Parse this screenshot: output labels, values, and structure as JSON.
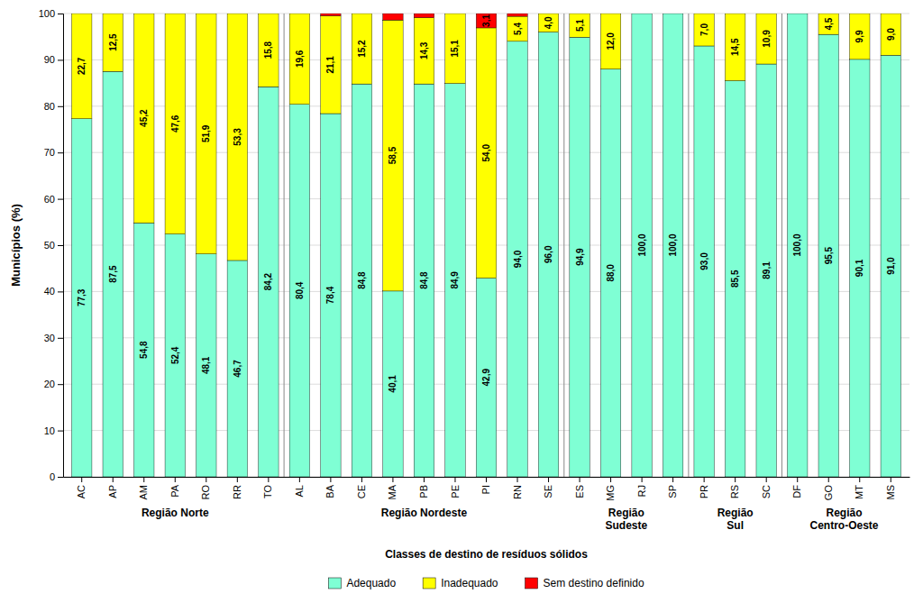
{
  "chart_data": {
    "type": "bar",
    "stacked": true,
    "data_labels": true,
    "grid": true,
    "ylabel": "Municípios (%)",
    "xlabel": "Classes de destino de resíduos sólidos",
    "categories": [
      "AC",
      "AP",
      "AM",
      "PA",
      "RO",
      "RR",
      "TO",
      "AL",
      "BA",
      "CE",
      "MA",
      "PB",
      "PE",
      "PI",
      "RN",
      "SE",
      "ES",
      "MG",
      "RJ",
      "SP",
      "PR",
      "RS",
      "SC",
      "DF",
      "GO",
      "MT",
      "MS"
    ],
    "series": [
      {
        "name": "Adequado",
        "color": "#7FFFD4",
        "values": [
          77.3,
          87.5,
          54.8,
          52.4,
          48.1,
          46.7,
          84.2,
          80.4,
          78.4,
          84.8,
          40.1,
          84.8,
          84.9,
          42.9,
          94.0,
          96.0,
          94.9,
          88.0,
          100.0,
          100.0,
          93.0,
          85.5,
          89.1,
          100.0,
          95.5,
          90.1,
          91.0
        ],
        "value_labels": [
          "77,3",
          "87,5",
          "54,8",
          "52,4",
          "48,1",
          "46,7",
          "84,2",
          "80,4",
          "78,4",
          "84,8",
          "40,1",
          "84,8",
          "84,9",
          "42,9",
          "94,0",
          "96,0",
          "94,9",
          "88,0",
          "100,0",
          "100,0",
          "93,0",
          "85,5",
          "89,1",
          "100,0",
          "95,5",
          "90,1",
          "91,0"
        ]
      },
      {
        "name": "Inadequado",
        "color": "#FFFF00",
        "values": [
          22.7,
          12.5,
          45.2,
          47.6,
          51.9,
          53.3,
          15.8,
          19.6,
          21.1,
          15.2,
          58.5,
          14.3,
          15.1,
          54.0,
          5.4,
          4.0,
          5.1,
          12.0,
          0.0,
          0.0,
          7.0,
          14.5,
          10.9,
          0.0,
          4.5,
          9.9,
          9.0
        ],
        "value_labels": [
          "22,7",
          "12,5",
          "45,2",
          "47,6",
          "51,9",
          "53,3",
          "15,8",
          "19,6",
          "21,1",
          "15,2",
          "58,5",
          "14,3",
          "15,1",
          "54,0",
          "5,4",
          "4,0",
          "5,1",
          "12,0",
          null,
          null,
          "7,0",
          "14,5",
          "10,9",
          null,
          "4,5",
          "9,9",
          "9,0"
        ]
      },
      {
        "name": "Sem destino definido",
        "color": "#FF0000",
        "values": [
          0.0,
          0.0,
          0.0,
          0.0,
          0.0,
          0.0,
          0.0,
          0.0,
          0.5,
          0.0,
          1.4,
          0.9,
          0.0,
          3.1,
          0.6,
          0.0,
          0.0,
          0.0,
          0.0,
          0.0,
          0.0,
          0.0,
          0.0,
          0.0,
          0.0,
          0.0,
          0.0
        ],
        "value_labels": [
          null,
          null,
          null,
          null,
          null,
          null,
          null,
          null,
          null,
          null,
          null,
          null,
          null,
          "3,1",
          null,
          null,
          null,
          null,
          null,
          null,
          null,
          null,
          null,
          null,
          null,
          null,
          null
        ]
      }
    ],
    "groups": [
      {
        "label": "Região Norte",
        "categories": [
          "AC",
          "AP",
          "AM",
          "PA",
          "RO",
          "RR",
          "TO"
        ]
      },
      {
        "label": "Região Nordeste",
        "categories": [
          "AL",
          "BA",
          "CE",
          "MA",
          "PB",
          "PE",
          "PI",
          "RN",
          "SE"
        ]
      },
      {
        "label": "Região\nSudeste",
        "categories": [
          "ES",
          "MG",
          "RJ",
          "SP"
        ]
      },
      {
        "label": "Região\nSul",
        "categories": [
          "PR",
          "RS",
          "SC"
        ]
      },
      {
        "label": "Região\nCentro-Oeste",
        "categories": [
          "DF",
          "GO",
          "MT",
          "MS"
        ]
      }
    ],
    "ylim": [
      0,
      100
    ],
    "yticks": [
      0,
      10,
      20,
      30,
      40,
      50,
      60,
      70,
      80,
      90,
      100
    ]
  }
}
